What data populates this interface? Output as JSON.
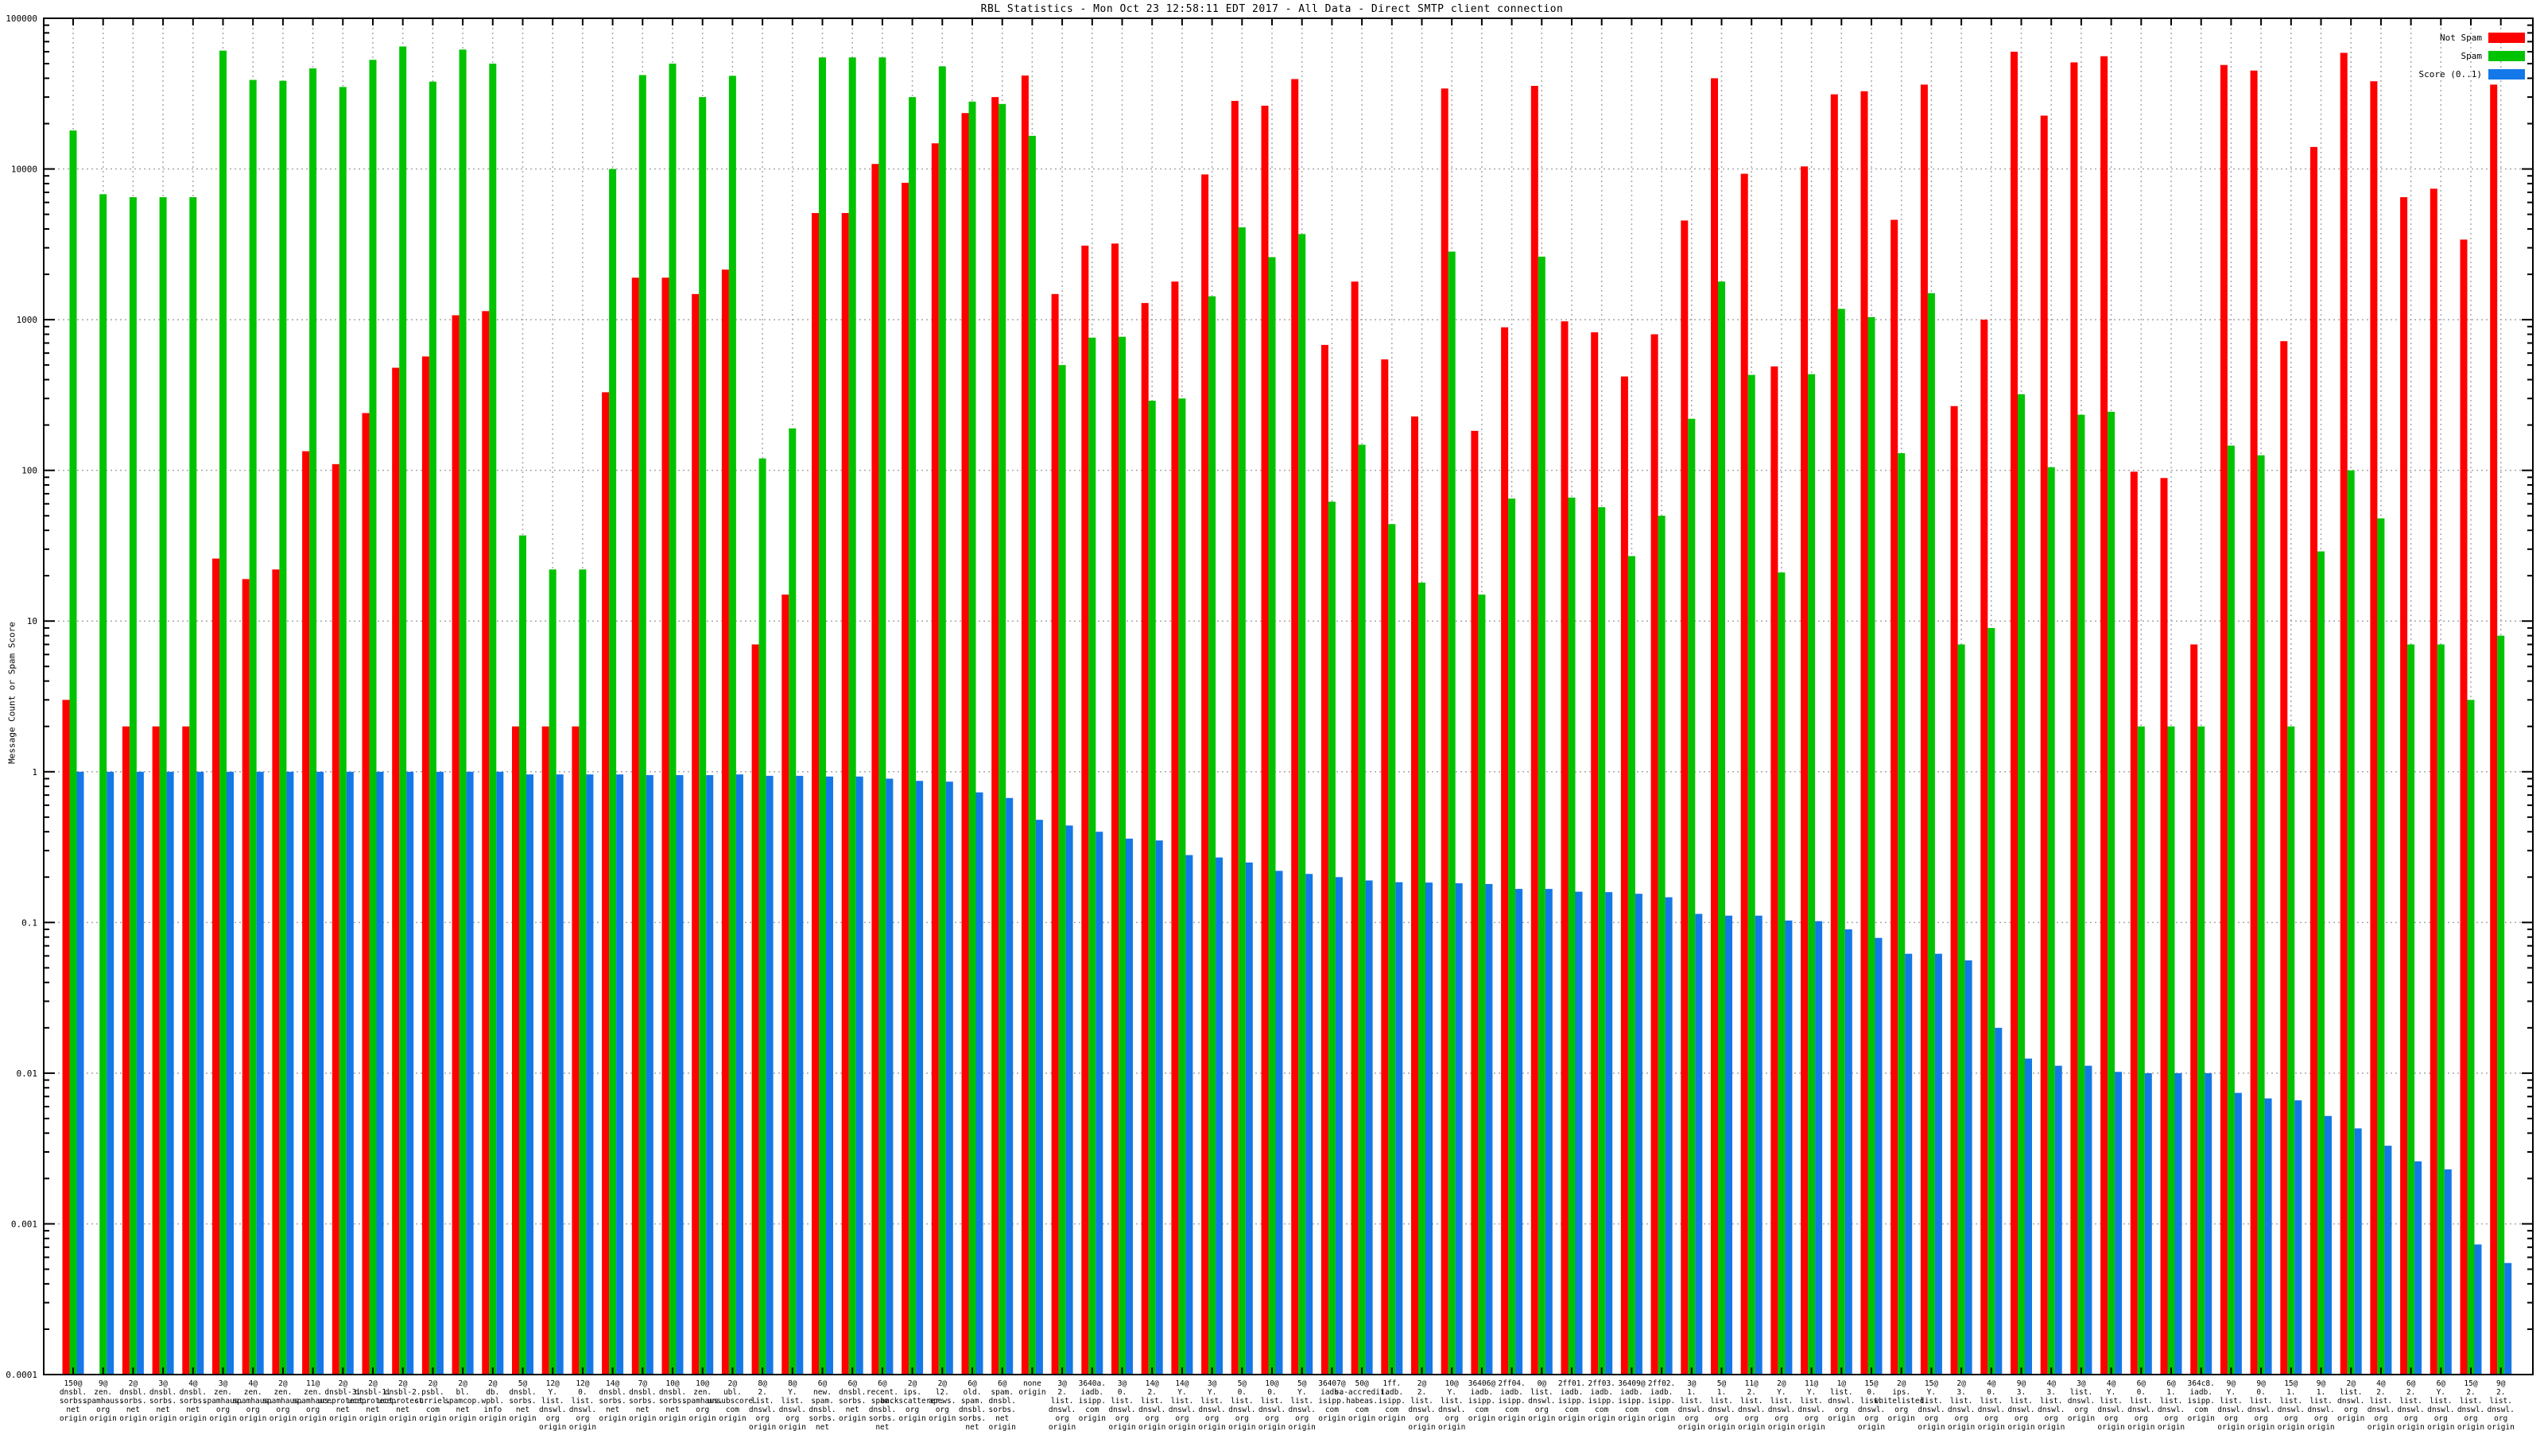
{
  "title": "RBL Statistics - Mon Oct 23 12:58:11 EDT 2017 - All Data - Direct SMTP client connection",
  "y_axis": {
    "label": "Message Count or Spam Score",
    "ticks": [
      "100000",
      "10000",
      "1000",
      "100",
      "10",
      "1",
      "0.1",
      "0.01",
      "0.001",
      "0.0001"
    ]
  },
  "legend": [
    {
      "label": "Not Spam",
      "color": "#ff0000"
    },
    {
      "label": "Spam",
      "color": "#00c300"
    },
    {
      "label": "Score (0..1)",
      "color": "#1478e8"
    }
  ],
  "colors": {
    "not_spam": "#ff0000",
    "spam": "#00c300",
    "score": "#1478e8",
    "grid": "#a8a8a8",
    "axis": "#000000",
    "background": "#ffffff"
  },
  "chart_data": {
    "type": "bar",
    "log_scale": true,
    "ylim": [
      0.0001,
      100000
    ],
    "ylabel": "Message Count or Spam Score",
    "grid": true,
    "legend_position": "top-right",
    "categories": [
      "150@dnsbl.sorbs.net origin",
      "9@zen.spamhaus.org origin",
      "2@dnsbl.sorbs.net origin",
      "3@dnsbl.sorbs.net origin",
      "4@dnsbl.sorbs.net origin",
      "3@zen.spamhaus.org origin",
      "4@zen.spamhaus.org origin",
      "2@zen.spamhaus.org origin",
      "11@zen.spamhaus.org origin",
      "2@dnsbl-3.uceprotect.net origin",
      "2@dnsbl-1.uceprotect.net origin",
      "2@dnsbl-2.uceprotect.net origin",
      "2@psbl.surriel.com origin",
      "2@bl.spamcop.net origin",
      "2@db.wpbl.info origin",
      "5@dnsbl.sorbs.net origin",
      "12@Y.list.dnswl.org origin",
      "12@0.list.dnswl.org origin",
      "14@dnsbl.sorbs.net origin",
      "7@dnsbl.sorbs.net origin",
      "10@dnsbl.sorbs.net origin",
      "10@zen.spamhaus.org origin",
      "2@ubl.unsubscore.com origin",
      "8@2.list.dnswl.org origin",
      "8@Y.list.dnswl.org origin",
      "6@new.spam.dnsbl.sorbs.net origin",
      "6@dnsbl.sorbs.net origin",
      "6@recent.spam.dnsbl.sorbs.net origin",
      "2@ips.backscatterer.org origin",
      "2@l2.apews.org origin",
      "6@old.spam.dnsbl.sorbs.net origin",
      "6@spam.dnsbl.sorbs.net origin",
      "none origin",
      "3@2.list.dnswl.org origin",
      "3640a.iadb.isipp.com origin",
      "3@0.list.dnswl.org origin",
      "14@2.list.dnswl.org origin",
      "14@Y.list.dnswl.org origin",
      "3@Y.list.dnswl.org origin",
      "5@0.list.dnswl.org origin",
      "10@0.list.dnswl.org origin",
      "5@Y.list.dnswl.org origin",
      "36407@iadb.isipp.com origin",
      "50@sa-accredit.habeas.com origin",
      "1ff.iadb.isipp.com origin",
      "2@2.list.dnswl.org origin",
      "10@Y.list.dnswl.org origin",
      "36406@iadb.isipp.com origin",
      "2ff04.iadb.isipp.com origin",
      "0@list.dnswl.org origin",
      "2ff01.iadb.isipp.com origin",
      "2ff03.iadb.isipp.com origin",
      "36409@iadb.isipp.com origin",
      "2ff02.iadb.isipp.com origin",
      "3@1.list.dnswl.org origin",
      "5@1.list.dnswl.org origin",
      "11@2.list.dnswl.org origin",
      "2@Y.list.dnswl.org origin",
      "11@Y.list.dnswl.org origin",
      "1@list.dnswl.org origin",
      "15@0.list.dnswl.org origin",
      "2@ips.whitelisted.org origin",
      "15@Y.list.dnswl.org origin",
      "2@3.list.dnswl.org origin",
      "4@0.list.dnswl.org origin",
      "9@3.list.dnswl.org origin",
      "4@3.list.dnswl.org origin",
      "3@list.dnswl.org origin",
      "4@Y.list.dnswl.org origin",
      "6@0.list.dnswl.org origin",
      "6@1.list.dnswl.org origin",
      "364c8.iadb.isipp.com origin",
      "9@Y.list.dnswl.org origin",
      "9@0.list.dnswl.org origin",
      "15@1.list.dnswl.org origin",
      "9@1.list.dnswl.org origin",
      "2@list.dnswl.org origin",
      "4@2.list.dnswl.org origin",
      "6@2.list.dnswl.org origin",
      "6@Y.list.dnswl.org origin",
      "15@2.list.dnswl.org origin",
      "9@2.list.dnswl.org origin"
    ],
    "series": [
      {
        "name": "Not Spam",
        "values": [
          3,
          0,
          2,
          2,
          2,
          26,
          19,
          22,
          134,
          110,
          240,
          480,
          570,
          1070,
          1140,
          2,
          2,
          2,
          330,
          1900,
          1900,
          1480,
          2150,
          7,
          15,
          5100,
          5100,
          10800,
          8100,
          14800,
          23500,
          30000,
          41700,
          1480,
          3100,
          3200,
          1290,
          1790,
          9200,
          28300,
          26300,
          39500,
          680,
          1790,
          545,
          228,
          34200,
          183,
          890,
          35600,
          975,
          825,
          420,
          800,
          4550,
          40000,
          9300,
          490,
          10400,
          31300,
          32800,
          4600,
          36300,
          267,
          1000,
          60000,
          22600,
          51000,
          56000,
          98,
          89,
          7,
          49000,
          45000,
          720,
          14000,
          59000,
          38200,
          6500,
          7400,
          3400,
          36300
        ]
      },
      {
        "name": "Spam",
        "values": [
          18000,
          6800,
          6500,
          6500,
          6500,
          61000,
          39000,
          38500,
          46500,
          35000,
          53000,
          65000,
          38000,
          62000,
          50000,
          37,
          22,
          22,
          10000,
          42000,
          50000,
          30000,
          41500,
          120,
          190,
          55000,
          55000,
          55000,
          30000,
          48000,
          28000,
          27000,
          16600,
          500,
          760,
          770,
          290,
          300,
          1430,
          4100,
          2600,
          3700,
          62,
          148,
          44,
          18,
          2830,
          15,
          65,
          2620,
          66,
          57,
          27,
          50,
          220,
          1790,
          430,
          21,
          435,
          1180,
          1040,
          130,
          1500,
          7,
          9,
          320,
          105,
          234,
          245,
          2,
          2,
          2,
          146,
          126,
          2,
          29,
          100,
          48,
          7,
          7,
          3,
          8
        ]
      },
      {
        "name": "Score (0..1)",
        "values": [
          1.0,
          1.0,
          1.0,
          1.0,
          1.0,
          1.0,
          1.0,
          1.0,
          1.0,
          1.0,
          1.0,
          1.0,
          1.0,
          1.0,
          1.0,
          0.96,
          0.96,
          0.96,
          0.96,
          0.95,
          0.95,
          0.95,
          0.96,
          0.94,
          0.94,
          0.93,
          0.93,
          0.9,
          0.87,
          0.86,
          0.73,
          0.67,
          0.48,
          0.44,
          0.4,
          0.36,
          0.35,
          0.28,
          0.27,
          0.25,
          0.22,
          0.21,
          0.2,
          0.19,
          0.185,
          0.184,
          0.182,
          0.18,
          0.167,
          0.167,
          0.16,
          0.159,
          0.155,
          0.147,
          0.114,
          0.111,
          0.111,
          0.103,
          0.102,
          0.09,
          0.079,
          0.062,
          0.062,
          0.056,
          0.02,
          0.0125,
          0.0112,
          0.0112,
          0.0102,
          0.01,
          0.01,
          0.01,
          0.0074,
          0.0068,
          0.0066,
          0.0052,
          0.0043,
          0.0033,
          0.0026,
          0.0023,
          0.00073,
          0.00055
        ]
      }
    ]
  }
}
